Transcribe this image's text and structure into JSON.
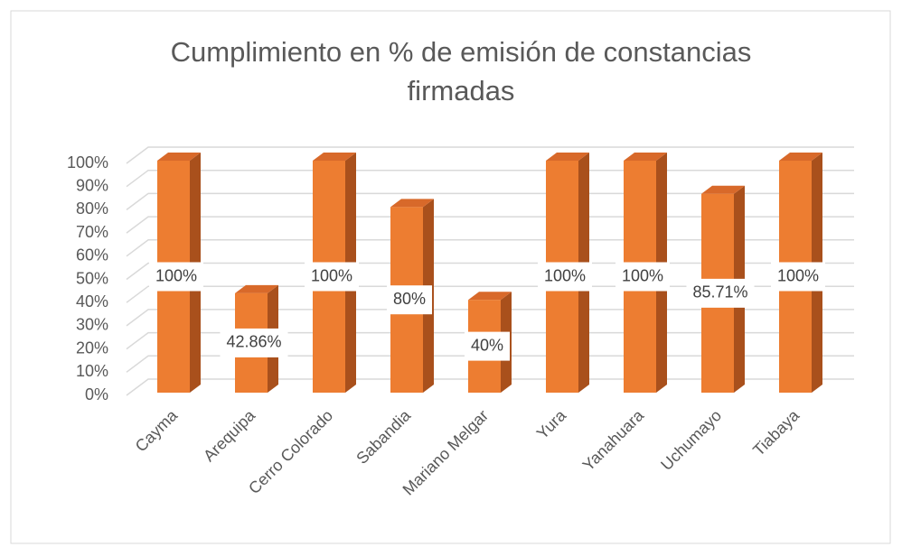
{
  "chart_data": {
    "type": "bar3d",
    "title": "Cumplimiento en % de emisión de constancias firmadas",
    "categories": [
      "Cayma",
      "Arequipa",
      "Cerro Colorado",
      "Sabandia",
      "Mariano Melgar",
      "Yura",
      "Yanahuara",
      "Uchumayo",
      "Tiabaya"
    ],
    "values": [
      100,
      42.86,
      100,
      80,
      40,
      100,
      100,
      85.71,
      100
    ],
    "value_labels": [
      "100%",
      "42.86%",
      "100%",
      "80%",
      "40%",
      "100%",
      "100%",
      "85.71%",
      "100%"
    ],
    "color": "#ED7D31",
    "ylim": [
      0,
      100
    ],
    "yticks": [
      {
        "value": 0,
        "label": "0%"
      },
      {
        "value": 10,
        "label": "10%"
      },
      {
        "value": 20,
        "label": "20%"
      },
      {
        "value": 30,
        "label": "30%"
      },
      {
        "value": 40,
        "label": "40%"
      },
      {
        "value": 50,
        "label": "50%"
      },
      {
        "value": 60,
        "label": "60%"
      },
      {
        "value": 70,
        "label": "70%"
      },
      {
        "value": 80,
        "label": "80%"
      },
      {
        "value": 90,
        "label": "90%"
      },
      {
        "value": 100,
        "label": "100%"
      }
    ],
    "grid": true
  }
}
